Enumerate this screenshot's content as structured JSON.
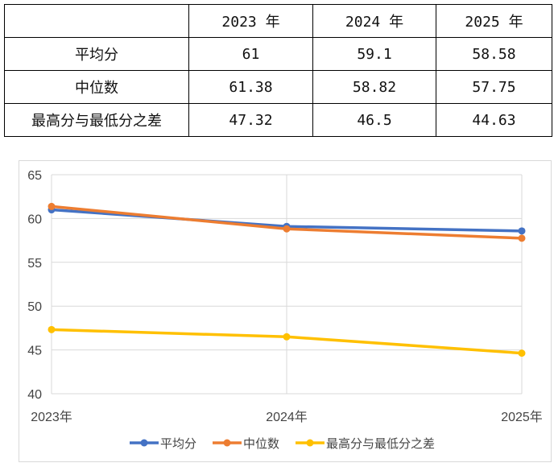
{
  "table": {
    "headers": [
      "",
      "2023 年",
      "2024 年",
      "2025 年"
    ],
    "rows": [
      {
        "label": "平均分",
        "values": [
          "61",
          "59.1",
          "58.58"
        ]
      },
      {
        "label": "中位数",
        "values": [
          "61.38",
          "58.82",
          "57.75"
        ]
      },
      {
        "label": "最高分与最低分之差",
        "values": [
          "47.32",
          "46.5",
          "44.63"
        ]
      }
    ]
  },
  "chart_data": {
    "type": "line",
    "categories": [
      "2023年",
      "2024年",
      "2025年"
    ],
    "ylim": [
      40,
      65
    ],
    "yticks": [
      40,
      45,
      50,
      55,
      60,
      65
    ],
    "grid": true,
    "legend_position": "bottom",
    "series": [
      {
        "name": "平均分",
        "values": [
          61,
          59.1,
          58.58
        ],
        "color": "#4472c4"
      },
      {
        "name": "中位数",
        "values": [
          61.38,
          58.82,
          57.75
        ],
        "color": "#ed7d31"
      },
      {
        "name": "最高分与最低分之差",
        "values": [
          47.32,
          46.5,
          44.63
        ],
        "color": "#ffc000"
      }
    ]
  }
}
